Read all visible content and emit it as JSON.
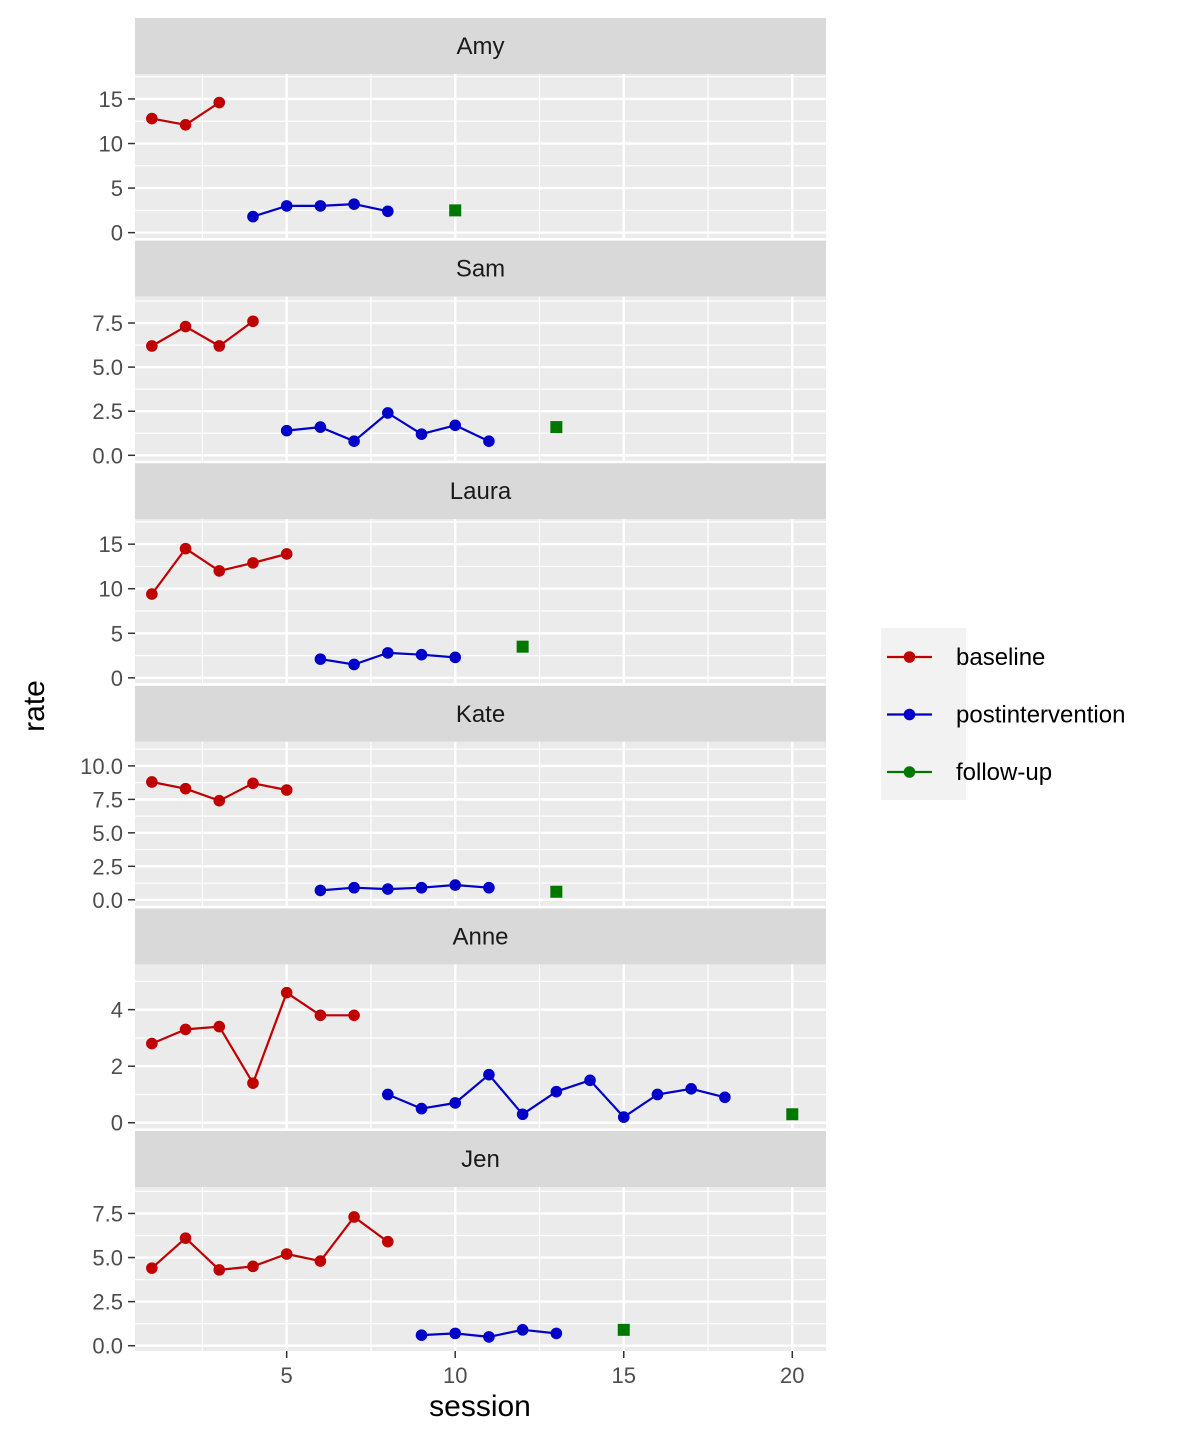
{
  "chart_data": {
    "type": "line",
    "xlabel": "session",
    "ylabel": "rate",
    "xlim": [
      0.5,
      21
    ],
    "x_ticks": [
      5,
      10,
      15,
      20
    ],
    "x_minor_ticks": [
      2.5,
      7.5,
      12.5,
      17.5
    ],
    "colors": {
      "baseline": "#c00000",
      "postintervention": "#0000c8",
      "follow-up": "#007800"
    },
    "legend": {
      "position": "right",
      "entries": [
        {
          "key": "baseline",
          "label": "baseline"
        },
        {
          "key": "postintervention",
          "label": "postintervention"
        },
        {
          "key": "follow-up",
          "label": "follow-up"
        }
      ]
    },
    "panels": [
      {
        "name": "Amy",
        "ylim": [
          -0.6,
          17.8
        ],
        "y_ticks": [
          0,
          5,
          10,
          15
        ],
        "y_tick_labels": [
          "0",
          "5",
          "10",
          "15"
        ],
        "y_minor_ticks": [
          2.5,
          7.5,
          12.5,
          17.5
        ],
        "series": [
          {
            "phase": "baseline",
            "x": [
              1,
              2,
              3
            ],
            "y": [
              12.8,
              12.1,
              14.6
            ]
          },
          {
            "phase": "postintervention",
            "x": [
              4,
              5,
              6,
              7,
              8
            ],
            "y": [
              1.8,
              3.0,
              3.0,
              3.2,
              2.4
            ]
          },
          {
            "phase": "follow-up",
            "x": [
              10
            ],
            "y": [
              2.5
            ]
          }
        ]
      },
      {
        "name": "Sam",
        "ylim": [
          -0.3,
          9.0
        ],
        "y_ticks": [
          0,
          2.5,
          5,
          7.5
        ],
        "y_tick_labels": [
          "0.0",
          "2.5",
          "5.0",
          "7.5"
        ],
        "y_minor_ticks": [
          1.25,
          3.75,
          6.25,
          8.75
        ],
        "series": [
          {
            "phase": "baseline",
            "x": [
              1,
              2,
              3,
              4
            ],
            "y": [
              6.2,
              7.3,
              6.2,
              7.6
            ]
          },
          {
            "phase": "postintervention",
            "x": [
              5,
              6,
              7,
              8,
              9,
              10,
              11
            ],
            "y": [
              1.4,
              1.6,
              0.8,
              2.4,
              1.2,
              1.7,
              0.8
            ]
          },
          {
            "phase": "follow-up",
            "x": [
              13
            ],
            "y": [
              1.6
            ]
          }
        ]
      },
      {
        "name": "Laura",
        "ylim": [
          -0.6,
          17.8
        ],
        "y_ticks": [
          0,
          5,
          10,
          15
        ],
        "y_tick_labels": [
          "0",
          "5",
          "10",
          "15"
        ],
        "y_minor_ticks": [
          2.5,
          7.5,
          12.5,
          17.5
        ],
        "series": [
          {
            "phase": "baseline",
            "x": [
              1,
              2,
              3,
              4,
              5
            ],
            "y": [
              9.4,
              14.5,
              12.0,
              12.9,
              13.9
            ]
          },
          {
            "phase": "postintervention",
            "x": [
              6,
              7,
              8,
              9,
              10
            ],
            "y": [
              2.1,
              1.5,
              2.8,
              2.6,
              2.3
            ]
          },
          {
            "phase": "follow-up",
            "x": [
              12
            ],
            "y": [
              3.5
            ]
          }
        ]
      },
      {
        "name": "Kate",
        "ylim": [
          -0.45,
          11.8
        ],
        "y_ticks": [
          0,
          2.5,
          5,
          7.5,
          10
        ],
        "y_tick_labels": [
          "0.0",
          "2.5",
          "5.0",
          "7.5",
          "10.0"
        ],
        "y_minor_ticks": [
          1.25,
          3.75,
          6.25,
          8.75,
          11.25
        ],
        "series": [
          {
            "phase": "baseline",
            "x": [
              1,
              2,
              3,
              4,
              5
            ],
            "y": [
              8.8,
              8.3,
              7.4,
              8.7,
              8.2
            ]
          },
          {
            "phase": "postintervention",
            "x": [
              6,
              7,
              8,
              9,
              10,
              11
            ],
            "y": [
              0.7,
              0.9,
              0.8,
              0.9,
              1.1,
              0.9
            ]
          },
          {
            "phase": "follow-up",
            "x": [
              13
            ],
            "y": [
              0.6
            ]
          }
        ]
      },
      {
        "name": "Anne",
        "ylim": [
          -0.2,
          5.6
        ],
        "y_ticks": [
          0,
          2,
          4
        ],
        "y_tick_labels": [
          "0",
          "2",
          "4"
        ],
        "y_minor_ticks": [
          1,
          3,
          5
        ],
        "series": [
          {
            "phase": "baseline",
            "x": [
              1,
              2,
              3,
              4,
              5,
              6,
              7
            ],
            "y": [
              2.8,
              3.3,
              3.4,
              1.4,
              4.6,
              3.8,
              3.8
            ]
          },
          {
            "phase": "postintervention",
            "x": [
              8,
              9,
              10,
              11,
              12,
              13,
              14,
              15,
              16,
              17,
              18
            ],
            "y": [
              1.0,
              0.5,
              0.7,
              1.7,
              0.3,
              1.1,
              1.5,
              0.2,
              1.0,
              1.2,
              0.9
            ]
          },
          {
            "phase": "follow-up",
            "x": [
              20
            ],
            "y": [
              0.3
            ]
          }
        ]
      },
      {
        "name": "Jen",
        "ylim": [
          -0.3,
          9.0
        ],
        "y_ticks": [
          0,
          2.5,
          5,
          7.5
        ],
        "y_tick_labels": [
          "0.0",
          "2.5",
          "5.0",
          "7.5"
        ],
        "y_minor_ticks": [
          1.25,
          3.75,
          6.25,
          8.75
        ],
        "series": [
          {
            "phase": "baseline",
            "x": [
              1,
              2,
              3,
              4,
              5,
              6,
              7,
              8
            ],
            "y": [
              4.4,
              6.1,
              4.3,
              4.5,
              5.2,
              4.8,
              7.3,
              5.9
            ]
          },
          {
            "phase": "postintervention",
            "x": [
              9,
              10,
              11,
              12,
              13
            ],
            "y": [
              0.6,
              0.7,
              0.5,
              0.9,
              0.7
            ]
          },
          {
            "phase": "follow-up",
            "x": [
              15
            ],
            "y": [
              0.9
            ]
          }
        ]
      }
    ]
  }
}
